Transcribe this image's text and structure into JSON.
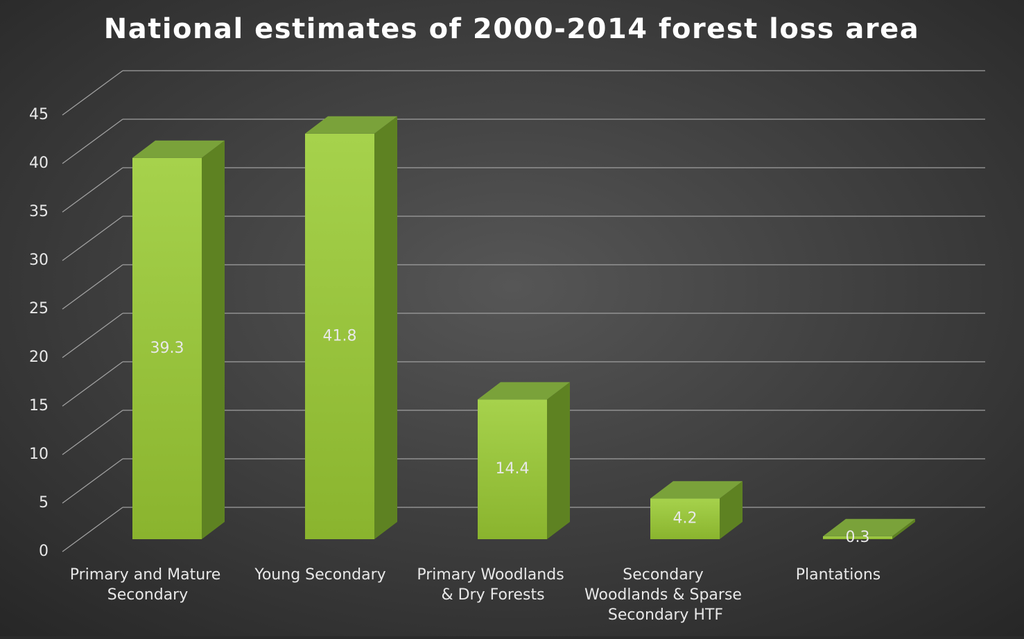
{
  "chart_data": {
    "type": "bar3d",
    "title": "National estimates of 2000-2014 forest loss area",
    "categories": [
      "Primary and Mature Secondary",
      "Young Secondary",
      "Primary Woodlands & Dry Forests",
      "Secondary Woodlands & Sparse Secondary HTF",
      "Plantations"
    ],
    "values": [
      39.3,
      41.8,
      14.4,
      4.2,
      0.3
    ],
    "color": "#9bc63c",
    "ylim": [
      0,
      45
    ],
    "yticks": [
      0,
      5,
      10,
      15,
      20,
      25,
      30,
      35,
      40,
      45
    ],
    "grid": true
  }
}
